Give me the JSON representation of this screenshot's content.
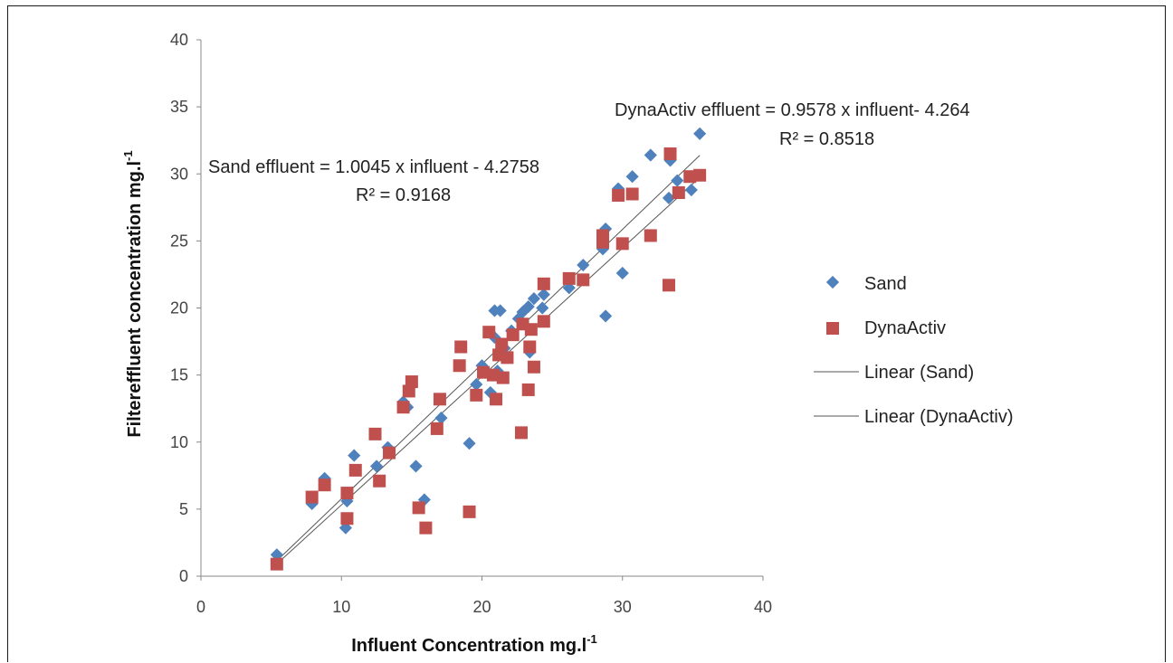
{
  "chart_data": {
    "type": "scatter",
    "title": "",
    "xlabel": "Influent Concentration mg.l",
    "xlabel_sup": "-1",
    "ylabel": "Filtereffluent concentration mg.l",
    "ylabel_sup": "-1",
    "xlim": [
      0,
      40
    ],
    "ylim": [
      0,
      40
    ],
    "xticks": [
      "0",
      "10",
      "20",
      "30",
      "40"
    ],
    "yticks": [
      "0",
      "5",
      "10",
      "15",
      "20",
      "25",
      "30",
      "35",
      "40"
    ],
    "grid": false,
    "legend_position": "right",
    "series": [
      {
        "name": "Sand",
        "marker": "diamond",
        "color": "#4f81bd",
        "points": [
          [
            5.4,
            1.6
          ],
          [
            7.9,
            5.4
          ],
          [
            8.8,
            7.3
          ],
          [
            10.3,
            3.6
          ],
          [
            10.4,
            5.6
          ],
          [
            10.9,
            9.0
          ],
          [
            12.5,
            8.2
          ],
          [
            13.3,
            9.6
          ],
          [
            14.4,
            13.0
          ],
          [
            14.7,
            12.6
          ],
          [
            15.3,
            8.2
          ],
          [
            15.9,
            5.7
          ],
          [
            17.1,
            11.8
          ],
          [
            19.1,
            9.9
          ],
          [
            19.6,
            14.3
          ],
          [
            20.0,
            15.7
          ],
          [
            20.6,
            13.7
          ],
          [
            20.9,
            17.8
          ],
          [
            20.9,
            19.8
          ],
          [
            21.3,
            19.8
          ],
          [
            21.1,
            15.3
          ],
          [
            21.6,
            17.0
          ],
          [
            22.1,
            18.3
          ],
          [
            22.6,
            19.2
          ],
          [
            22.9,
            19.7
          ],
          [
            23.3,
            20.1
          ],
          [
            23.4,
            16.7
          ],
          [
            23.7,
            20.7
          ],
          [
            24.3,
            20.0
          ],
          [
            24.4,
            21.0
          ],
          [
            26.2,
            21.5
          ],
          [
            27.2,
            23.2
          ],
          [
            28.6,
            24.4
          ],
          [
            28.8,
            25.9
          ],
          [
            28.8,
            19.4
          ],
          [
            29.7,
            28.9
          ],
          [
            30.0,
            22.6
          ],
          [
            30.7,
            29.8
          ],
          [
            32.0,
            31.4
          ],
          [
            33.3,
            28.2
          ],
          [
            33.4,
            31.0
          ],
          [
            33.9,
            29.5
          ],
          [
            34.9,
            28.8
          ],
          [
            35.5,
            33.0
          ]
        ]
      },
      {
        "name": "DynaActiv",
        "marker": "square",
        "color": "#c0504d",
        "points": [
          [
            5.4,
            0.9
          ],
          [
            7.9,
            5.9
          ],
          [
            8.8,
            6.8
          ],
          [
            10.4,
            6.2
          ],
          [
            10.4,
            4.3
          ],
          [
            11.0,
            7.9
          ],
          [
            12.4,
            10.6
          ],
          [
            12.7,
            7.1
          ],
          [
            13.4,
            9.2
          ],
          [
            14.4,
            12.6
          ],
          [
            14.8,
            13.8
          ],
          [
            15.0,
            14.5
          ],
          [
            15.5,
            5.1
          ],
          [
            16.0,
            3.6
          ],
          [
            16.8,
            11.0
          ],
          [
            17.0,
            13.2
          ],
          [
            18.4,
            15.7
          ],
          [
            18.5,
            17.1
          ],
          [
            19.1,
            4.8
          ],
          [
            19.6,
            13.5
          ],
          [
            20.1,
            15.2
          ],
          [
            20.5,
            18.2
          ],
          [
            20.8,
            15.0
          ],
          [
            21.0,
            13.2
          ],
          [
            21.2,
            16.5
          ],
          [
            21.4,
            17.3
          ],
          [
            21.5,
            14.8
          ],
          [
            21.8,
            16.3
          ],
          [
            22.2,
            18.0
          ],
          [
            22.8,
            10.7
          ],
          [
            22.9,
            18.8
          ],
          [
            23.3,
            13.9
          ],
          [
            23.4,
            17.1
          ],
          [
            23.5,
            18.4
          ],
          [
            23.7,
            15.6
          ],
          [
            24.4,
            19.0
          ],
          [
            24.4,
            21.8
          ],
          [
            26.2,
            22.2
          ],
          [
            27.2,
            22.1
          ],
          [
            28.6,
            24.9
          ],
          [
            28.6,
            25.4
          ],
          [
            29.7,
            28.4
          ],
          [
            30.0,
            24.8
          ],
          [
            30.7,
            28.5
          ],
          [
            32.0,
            25.4
          ],
          [
            33.3,
            21.7
          ],
          [
            33.4,
            31.5
          ],
          [
            34.0,
            28.6
          ],
          [
            34.8,
            29.8
          ],
          [
            35.5,
            29.9
          ]
        ]
      }
    ],
    "trendlines": [
      {
        "name": "Linear (Sand)",
        "series": "Sand",
        "slope": 1.0045,
        "intercept": -4.2758,
        "x_range": [
          5.4,
          35.5
        ],
        "color": "#555555"
      },
      {
        "name": "Linear (DynaActiv)",
        "series": "DynaActiv",
        "slope": 0.9578,
        "intercept": -4.264,
        "x_range": [
          5.4,
          35.5
        ],
        "color": "#555555"
      }
    ],
    "annotations": [
      {
        "line1": "Sand effluent = 1.0045 x influent - 4.2758",
        "line2": "R² = 0.9168"
      },
      {
        "line1": "DynaActiv effluent  = 0.9578 x influent- 4.264",
        "line2": "R² = 0.8518"
      }
    ],
    "legend": [
      "Sand",
      "DynaActiv",
      "Linear (Sand)",
      "Linear (DynaActiv)"
    ]
  }
}
